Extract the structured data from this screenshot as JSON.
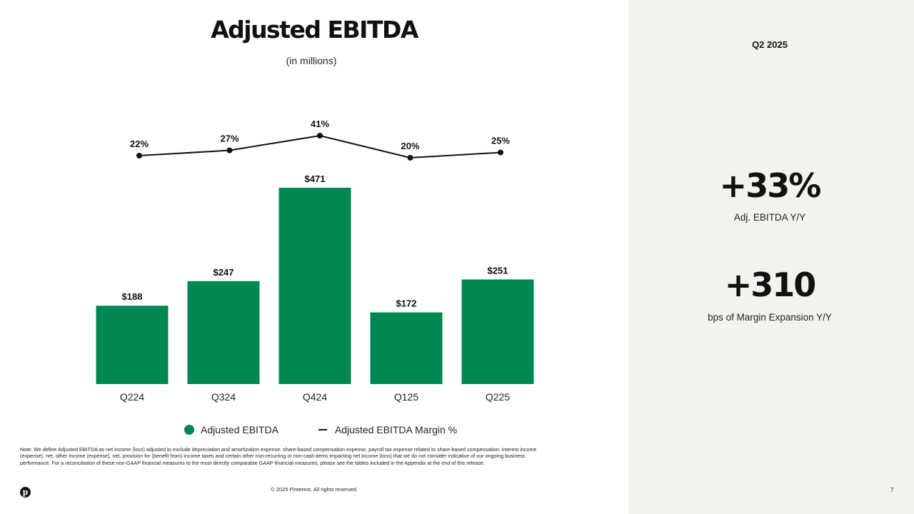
{
  "chart_data": {
    "type": "bar",
    "title": "Adjusted EBITDA",
    "subtitle": "(in millions)",
    "categories": [
      "Q224",
      "Q324",
      "Q424",
      "Q125",
      "Q225"
    ],
    "series": [
      {
        "name": "Adjusted EBITDA",
        "type": "bar",
        "values": [
          188,
          247,
          471,
          172,
          251
        ],
        "labels": [
          "$188",
          "$247",
          "$471",
          "$172",
          "$251"
        ],
        "color": "#008853"
      },
      {
        "name": "Adjusted EBITDA Margin %",
        "type": "line",
        "values": [
          22,
          27,
          41,
          20,
          25
        ],
        "labels": [
          "22%",
          "27%",
          "41%",
          "20%",
          "25%"
        ],
        "color": "#111111"
      }
    ],
    "legend_position": "bottom",
    "grid": false
  },
  "right_panel": {
    "period": "Q2 2025",
    "stat1": {
      "value": "+33%",
      "label": "Adj. EBITDA Y/Y"
    },
    "stat2": {
      "value": "+310",
      "label": "bps of Margin Expansion Y/Y"
    }
  },
  "footer": {
    "note": "Note: We define Adjusted EBITDA as net income (loss) adjusted to exclude depreciation and amortization expense, share-based compensation expense, payroll tax expense related to share-based compensation,  interest income (expense), net, other income (expense), net, provision for (benefit from) income taxes and certain other non-recurring or non-cash items impacting net income (loss) that we do not consider indicative of our ongoing business performance. For a reconciliation of these non-GAAP financial measures to the most directly comparable GAAP financial measures, please see the tables included in the Appendix at the end of this release.",
    "copyright": "© 2025 Pinterest. All rights reserved.",
    "page_number": "7",
    "logo_glyph": "p"
  },
  "colors": {
    "bar": "#008853",
    "line": "#111111",
    "panel_bg": "#f3f2ec"
  }
}
